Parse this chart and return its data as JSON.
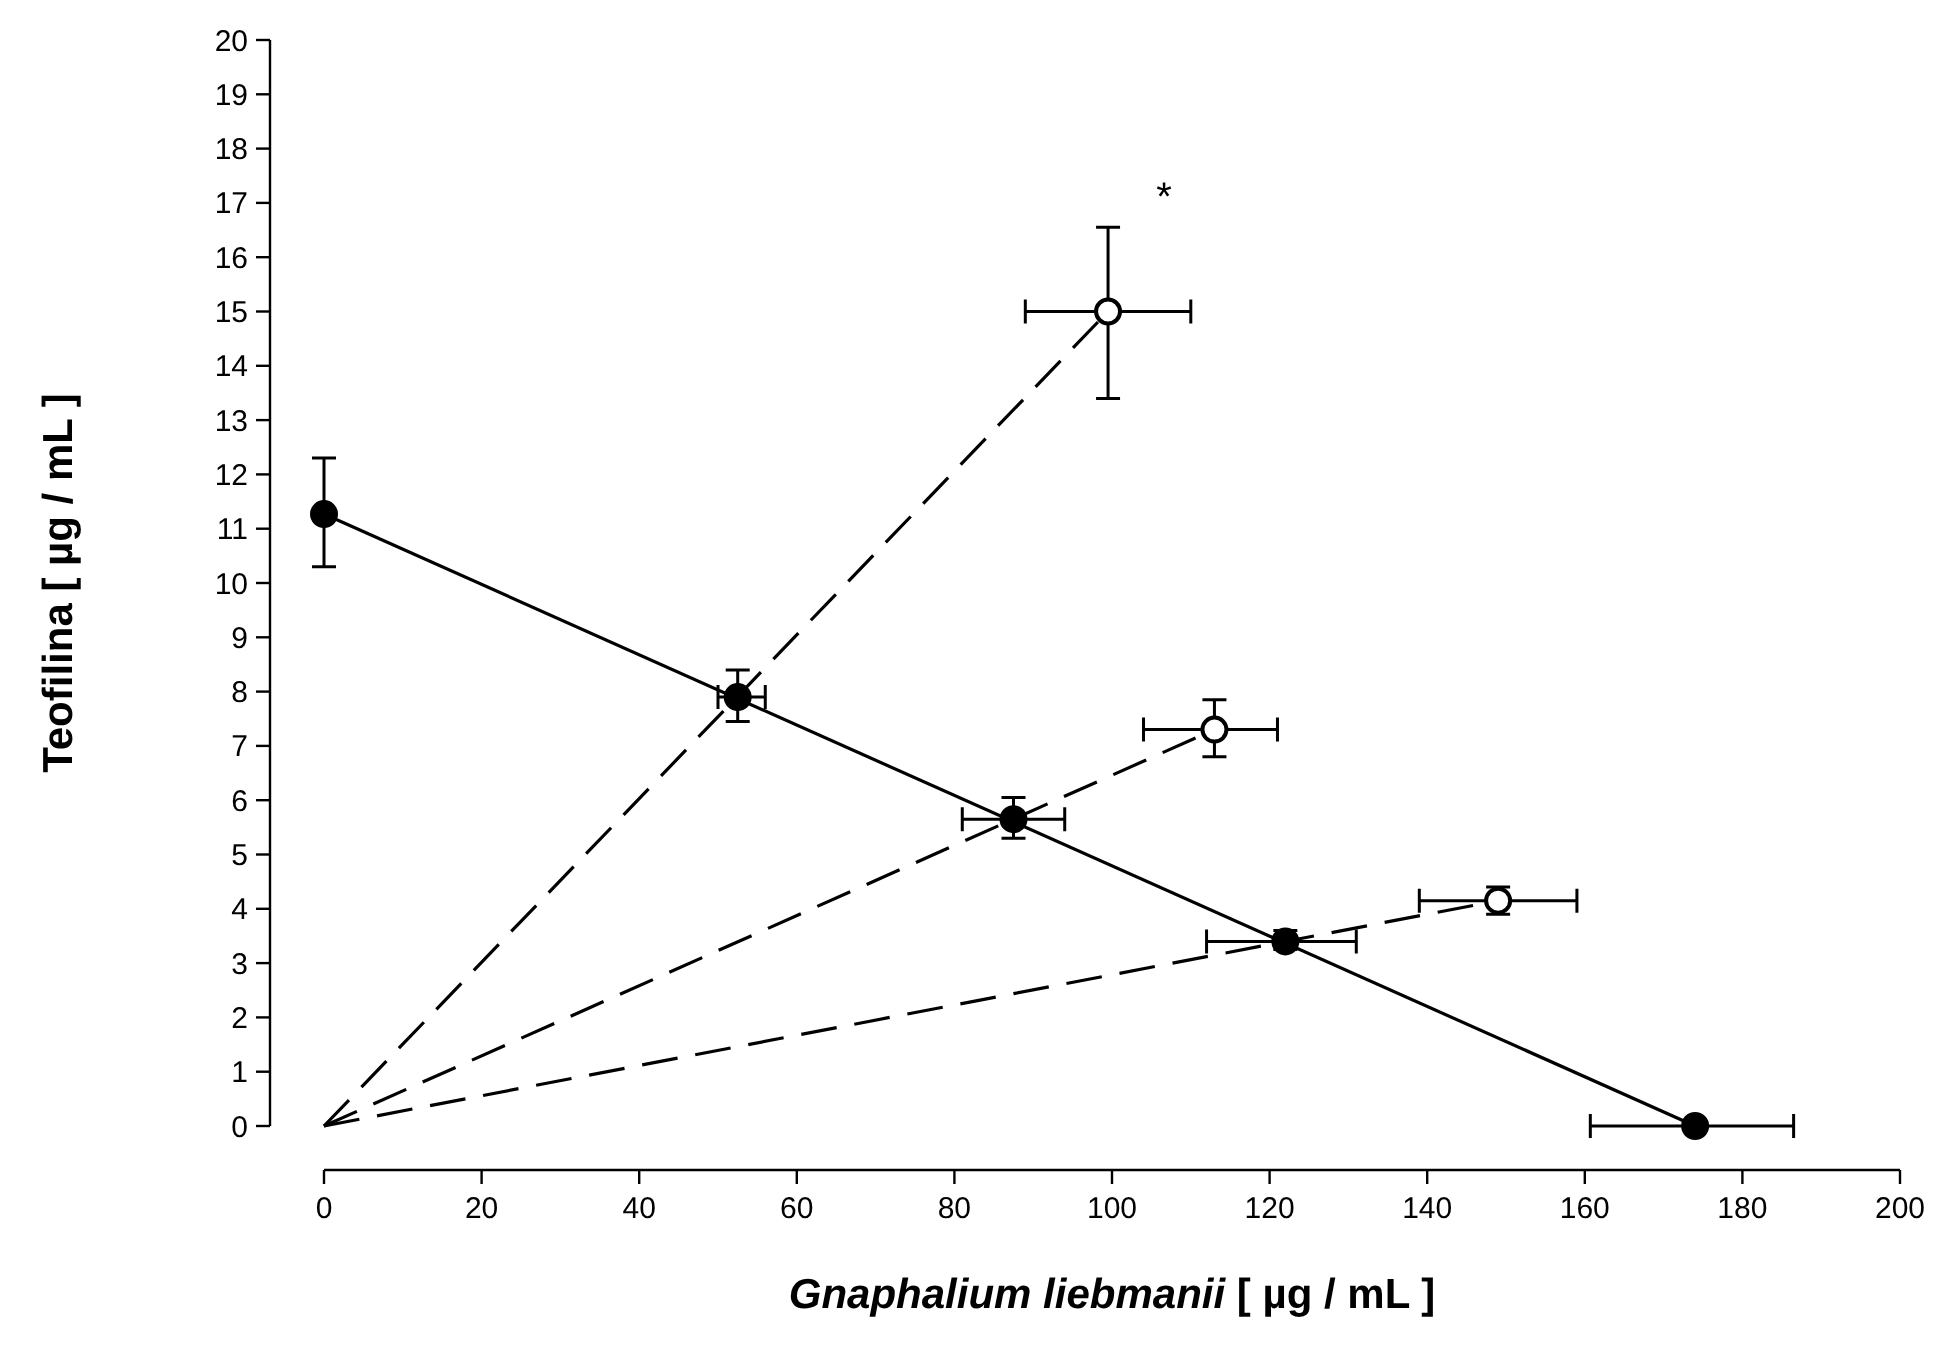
{
  "chart_data": {
    "type": "scatter",
    "xlabel": "Gnaphalium liebmanii [ µg / mL ]",
    "ylabel": "Teofilina [ µg / mL ]",
    "xlim": [
      0,
      200
    ],
    "xticks": [
      0,
      20,
      40,
      60,
      80,
      100,
      120,
      140,
      160,
      180,
      200
    ],
    "ylim": [
      0,
      20
    ],
    "yticks": [
      0,
      1,
      2,
      3,
      4,
      5,
      6,
      7,
      8,
      9,
      10,
      11,
      12,
      13,
      14,
      15,
      16,
      17,
      18,
      19,
      20
    ],
    "annotations": [
      {
        "text": "*",
        "x": 99.5,
        "y": 15
      }
    ],
    "series": [
      {
        "type": "line",
        "color": "#000000",
        "line_style": "solid",
        "x": [
          0,
          174
        ],
        "values": [
          11.27,
          0
        ]
      },
      {
        "type": "line",
        "color": "#000000",
        "line_style": "dashed",
        "x": [
          0,
          99.5
        ],
        "values": [
          0,
          15
        ]
      },
      {
        "type": "line",
        "color": "#000000",
        "line_style": "dashed",
        "x": [
          0,
          113
        ],
        "values": [
          0,
          7.3
        ]
      },
      {
        "type": "line",
        "color": "#000000",
        "line_style": "dashed",
        "x": [
          0,
          149
        ],
        "values": [
          0,
          4.15
        ]
      },
      {
        "color": "#000000",
        "marker": "circle",
        "x": [
          0,
          52.5,
          87.5,
          122,
          174
        ],
        "values": [
          11.27,
          7.9,
          5.65,
          3.4,
          0
        ],
        "errors": [
          [
            10.3,
            12.3
          ],
          [
            7.45,
            8.4
          ],
          [
            5.3,
            6.05
          ],
          [
            3.25,
            3.6
          ],
          null
        ],
        "xerrors": [
          null,
          [
            50,
            56
          ],
          [
            81,
            94
          ],
          [
            112,
            131
          ],
          [
            160.7,
            186.5
          ]
        ]
      },
      {
        "color": "#ffffff",
        "marker": "circle",
        "x": [
          99.5,
          113,
          149
        ],
        "values": [
          15,
          7.3,
          4.15
        ],
        "errors": [
          [
            13.4,
            16.55
          ],
          [
            6.8,
            7.85
          ],
          [
            3.9,
            4.4
          ]
        ],
        "xerrors": [
          [
            89,
            110
          ],
          [
            104,
            121
          ],
          [
            139,
            159
          ]
        ]
      }
    ]
  }
}
